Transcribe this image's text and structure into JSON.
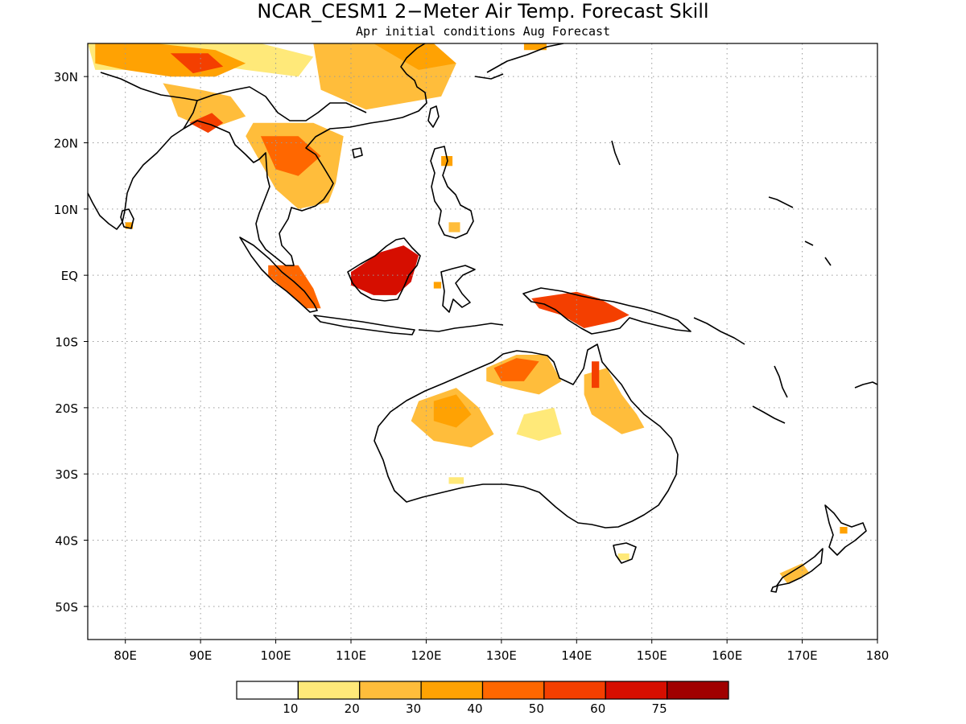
{
  "title": "NCAR_CESM1 2−Meter Air Temp. Forecast Skill",
  "subtitle": "Apr initial conditions  Aug Forecast",
  "map": {
    "lon_range": [
      75,
      180
    ],
    "lat_range": [
      -55,
      35
    ],
    "lon_ticks": [
      {
        "value": 80,
        "label": "80E"
      },
      {
        "value": 90,
        "label": "90E"
      },
      {
        "value": 100,
        "label": "100E"
      },
      {
        "value": 110,
        "label": "110E"
      },
      {
        "value": 120,
        "label": "120E"
      },
      {
        "value": 130,
        "label": "130E"
      },
      {
        "value": 140,
        "label": "140E"
      },
      {
        "value": 150,
        "label": "150E"
      },
      {
        "value": 160,
        "label": "160E"
      },
      {
        "value": 170,
        "label": "170E"
      },
      {
        "value": 180,
        "label": "180"
      }
    ],
    "lat_ticks": [
      {
        "value": 30,
        "label": "30N"
      },
      {
        "value": 20,
        "label": "20N"
      },
      {
        "value": 10,
        "label": "10N"
      },
      {
        "value": 0,
        "label": "EQ"
      },
      {
        "value": -10,
        "label": "10S"
      },
      {
        "value": -20,
        "label": "20S"
      },
      {
        "value": -30,
        "label": "30S"
      },
      {
        "value": -40,
        "label": "40S"
      },
      {
        "value": -50,
        "label": "50S"
      }
    ],
    "skill_regions": [
      {
        "name": "tibet-north",
        "level": 1,
        "lonlat": [
          [
            75,
            35
          ],
          [
            85,
            35
          ],
          [
            98,
            35
          ],
          [
            105,
            33
          ],
          [
            103,
            30
          ],
          [
            96,
            31
          ],
          [
            90,
            32
          ],
          [
            84,
            31
          ],
          [
            80,
            31
          ],
          [
            76,
            31
          ]
        ]
      },
      {
        "name": "tibet-core",
        "level": 3,
        "lonlat": [
          [
            76,
            35
          ],
          [
            84,
            35
          ],
          [
            92,
            34
          ],
          [
            96,
            32
          ],
          [
            92,
            30
          ],
          [
            86,
            30
          ],
          [
            80,
            31
          ],
          [
            76,
            32
          ]
        ]
      },
      {
        "name": "india-band",
        "level": 2,
        "lonlat": [
          [
            85,
            29
          ],
          [
            90,
            28
          ],
          [
            94,
            27
          ],
          [
            96,
            24
          ],
          [
            91,
            22
          ],
          [
            87,
            24
          ],
          [
            86,
            27
          ]
        ]
      },
      {
        "name": "himalaya-red",
        "level": 5,
        "lonlat": [
          [
            86,
            33.5
          ],
          [
            91,
            33.5
          ],
          [
            93,
            31.5
          ],
          [
            89,
            30.5
          ]
        ]
      },
      {
        "name": "bengal-red",
        "level": 5,
        "lonlat": [
          [
            88.5,
            23
          ],
          [
            91.5,
            24.5
          ],
          [
            93,
            23
          ],
          [
            91,
            21.5
          ]
        ]
      },
      {
        "name": "china-east",
        "level": 2,
        "lonlat": [
          [
            105,
            35
          ],
          [
            118,
            35
          ],
          [
            124,
            32
          ],
          [
            122,
            27
          ],
          [
            112,
            25
          ],
          [
            106,
            28
          ]
        ]
      },
      {
        "name": "china-northeast",
        "level": 3,
        "lonlat": [
          [
            113,
            35
          ],
          [
            121,
            35
          ],
          [
            124,
            32
          ],
          [
            119,
            31
          ]
        ]
      },
      {
        "name": "taiwan-dot",
        "level": 3,
        "lonlat": [
          [
            133,
            35
          ],
          [
            136,
            35
          ],
          [
            136,
            34
          ],
          [
            133,
            34
          ]
        ]
      },
      {
        "name": "mainland-sea",
        "level": 2,
        "lonlat": [
          [
            97,
            23
          ],
          [
            105,
            23
          ],
          [
            109,
            21
          ],
          [
            108,
            14
          ],
          [
            107,
            11
          ],
          [
            103,
            10
          ],
          [
            100,
            13
          ],
          [
            98,
            17
          ],
          [
            96,
            21
          ]
        ]
      },
      {
        "name": "mainland-sea-red",
        "level": 4,
        "lonlat": [
          [
            98,
            21
          ],
          [
            103,
            21
          ],
          [
            106,
            18
          ],
          [
            103,
            15
          ],
          [
            100,
            16
          ]
        ]
      },
      {
        "name": "philippines-dot",
        "level": 3,
        "lonlat": [
          [
            122,
            18
          ],
          [
            123.5,
            18
          ],
          [
            123.5,
            16.5
          ],
          [
            122,
            16.5
          ]
        ]
      },
      {
        "name": "luzon-dot",
        "level": 2,
        "lonlat": [
          [
            123,
            8
          ],
          [
            124.5,
            8
          ],
          [
            124.5,
            6.5
          ],
          [
            123,
            6.5
          ]
        ]
      },
      {
        "name": "srilanka-dot",
        "level": 3,
        "lonlat": [
          [
            80,
            8
          ],
          [
            81,
            8
          ],
          [
            81,
            7
          ],
          [
            80,
            7
          ]
        ]
      },
      {
        "name": "sumatra",
        "level": 4,
        "lonlat": [
          [
            99,
            1.5
          ],
          [
            103,
            1.5
          ],
          [
            105,
            -2
          ],
          [
            106,
            -5
          ],
          [
            104,
            -5
          ],
          [
            101,
            -2
          ],
          [
            99,
            0
          ]
        ]
      },
      {
        "name": "borneo",
        "level": 6,
        "lonlat": [
          [
            110,
            0.5
          ],
          [
            114,
            3.5
          ],
          [
            117,
            4.5
          ],
          [
            119,
            3
          ],
          [
            118,
            -1
          ],
          [
            116,
            -3
          ],
          [
            113,
            -3
          ],
          [
            110,
            -1.5
          ]
        ]
      },
      {
        "name": "sulawesi-dot",
        "level": 3,
        "lonlat": [
          [
            121,
            -1
          ],
          [
            122,
            -1
          ],
          [
            122,
            -2
          ],
          [
            121,
            -2
          ]
        ]
      },
      {
        "name": "new-guinea",
        "level": 5,
        "lonlat": [
          [
            134,
            -3.5
          ],
          [
            140,
            -2.5
          ],
          [
            143,
            -3.5
          ],
          [
            147,
            -6
          ],
          [
            145,
            -7
          ],
          [
            141,
            -8
          ],
          [
            138,
            -6
          ],
          [
            135,
            -5
          ]
        ]
      },
      {
        "name": "aus-north-central",
        "level": 2,
        "lonlat": [
          [
            128,
            -14
          ],
          [
            132,
            -12
          ],
          [
            136,
            -12
          ],
          [
            138,
            -16
          ],
          [
            135,
            -18
          ],
          [
            131,
            -17
          ],
          [
            128,
            -16
          ]
        ]
      },
      {
        "name": "aus-north-red",
        "level": 4,
        "lonlat": [
          [
            129,
            -14
          ],
          [
            132,
            -12.5
          ],
          [
            135,
            -13
          ],
          [
            133,
            -16
          ],
          [
            130,
            -16
          ]
        ]
      },
      {
        "name": "aus-west",
        "level": 2,
        "lonlat": [
          [
            119,
            -19
          ],
          [
            124,
            -17
          ],
          [
            127,
            -20
          ],
          [
            129,
            -24
          ],
          [
            126,
            -26
          ],
          [
            121,
            -25
          ],
          [
            118,
            -22
          ]
        ]
      },
      {
        "name": "aus-west-core",
        "level": 3,
        "lonlat": [
          [
            121,
            -19
          ],
          [
            124,
            -18
          ],
          [
            126,
            -21
          ],
          [
            124,
            -23
          ],
          [
            121,
            -22
          ]
        ]
      },
      {
        "name": "aus-queensland",
        "level": 2,
        "lonlat": [
          [
            141,
            -15
          ],
          [
            144,
            -14
          ],
          [
            146,
            -18
          ],
          [
            148,
            -21
          ],
          [
            149,
            -23
          ],
          [
            146,
            -24
          ],
          [
            142,
            -21
          ],
          [
            141,
            -18
          ]
        ]
      },
      {
        "name": "aus-queensland-red",
        "level": 5,
        "lonlat": [
          [
            142,
            -13
          ],
          [
            143,
            -13
          ],
          [
            143,
            -17
          ],
          [
            142,
            -17
          ]
        ]
      },
      {
        "name": "aus-inland",
        "level": 1,
        "lonlat": [
          [
            133,
            -21
          ],
          [
            137,
            -20
          ],
          [
            138,
            -24
          ],
          [
            135,
            -25
          ],
          [
            132,
            -24
          ]
        ]
      },
      {
        "name": "aus-south-dot",
        "level": 1,
        "lonlat": [
          [
            123,
            -30.5
          ],
          [
            125,
            -30.5
          ],
          [
            125,
            -31.5
          ],
          [
            123,
            -31.5
          ]
        ]
      },
      {
        "name": "tasmania-dot",
        "level": 1,
        "lonlat": [
          [
            145.5,
            -42
          ],
          [
            147,
            -42
          ],
          [
            147,
            -43
          ],
          [
            145.5,
            -43
          ]
        ]
      },
      {
        "name": "nz-south",
        "level": 2,
        "lonlat": [
          [
            167,
            -45
          ],
          [
            170,
            -43.5
          ],
          [
            171,
            -45
          ],
          [
            168,
            -46.5
          ]
        ]
      },
      {
        "name": "nz-north-dot",
        "level": 3,
        "lonlat": [
          [
            175,
            -38
          ],
          [
            176,
            -38
          ],
          [
            176,
            -39
          ],
          [
            175,
            -39
          ]
        ]
      }
    ]
  },
  "colorbar": {
    "colors": [
      "#ffffff",
      "#ffe979",
      "#ffbd3b",
      "#ffa203",
      "#ff6700",
      "#f43f00",
      "#d60e00",
      "#a00000"
    ],
    "labels": [
      "10",
      "20",
      "30",
      "40",
      "50",
      "60",
      "75"
    ]
  }
}
